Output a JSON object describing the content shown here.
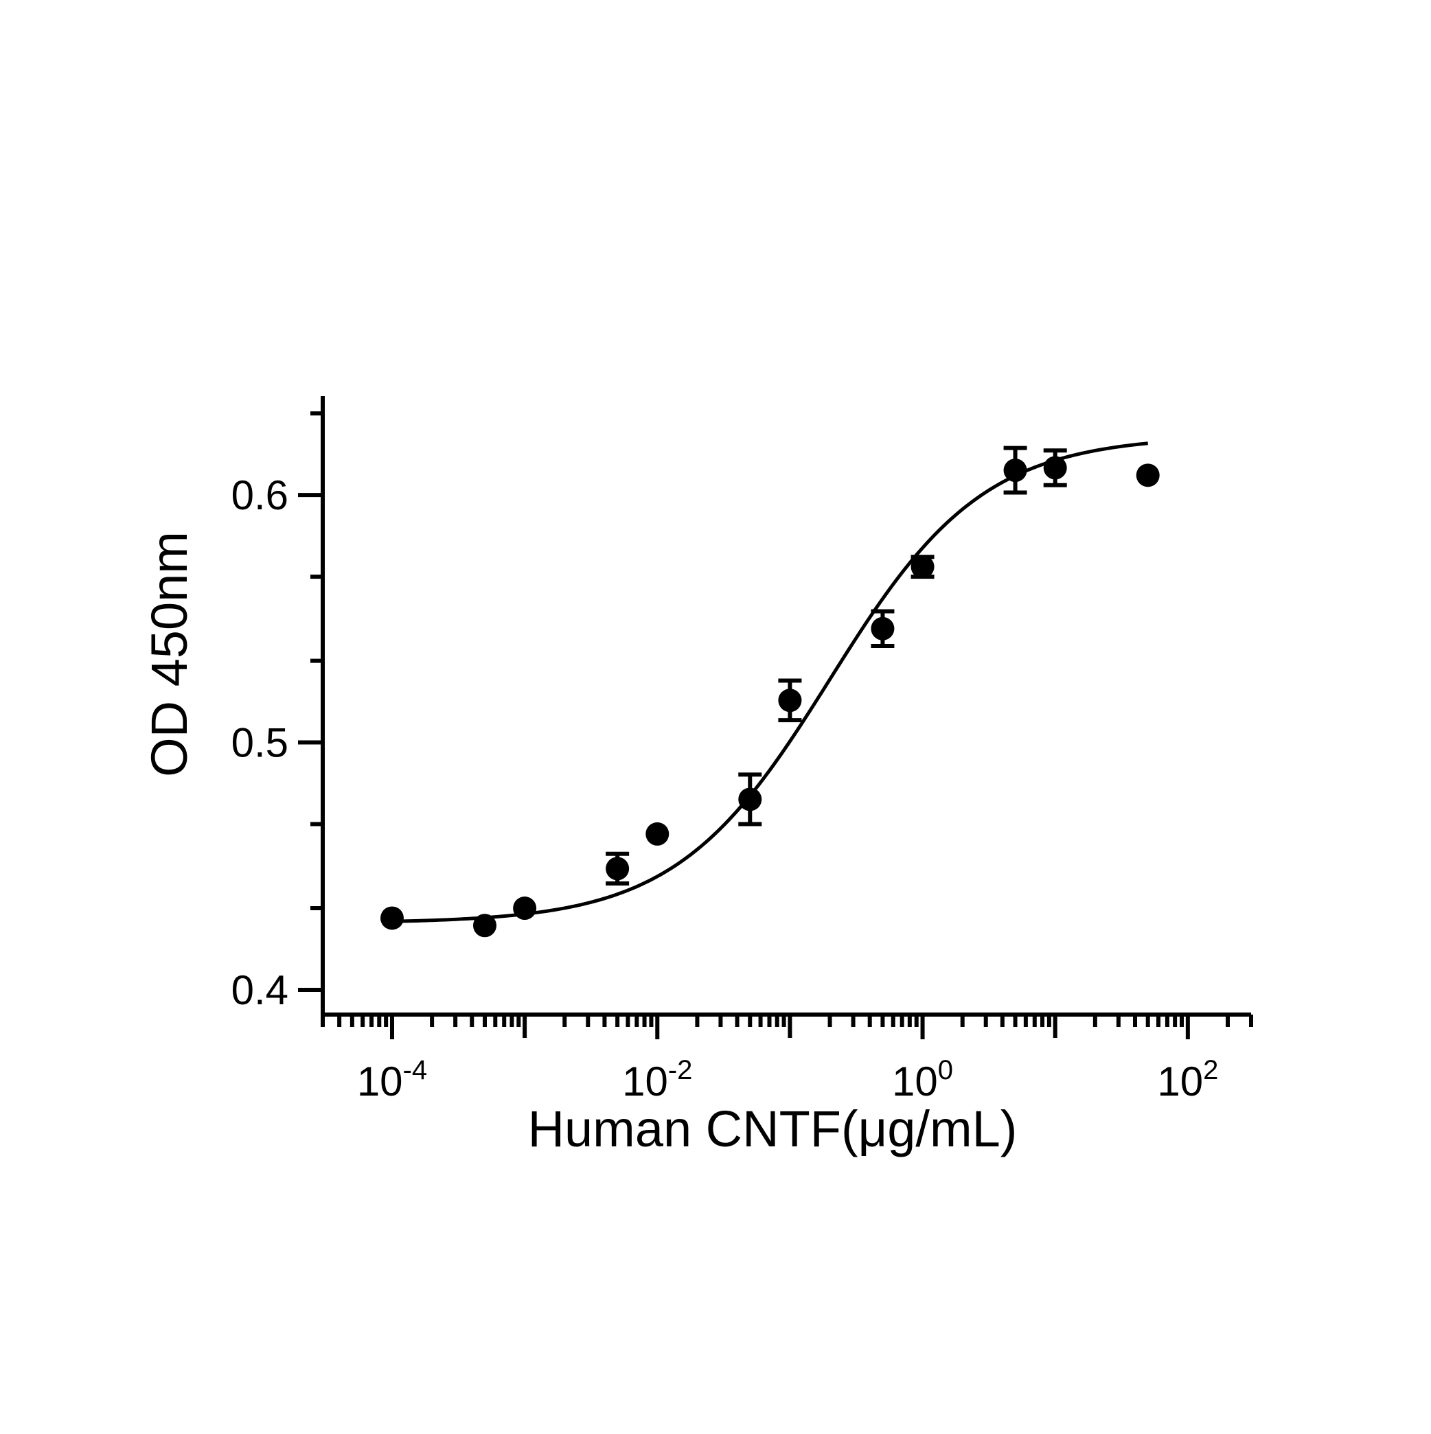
{
  "chart_data": {
    "type": "scatter",
    "title": "",
    "xlabel": "Human CNTF(μg/mL)",
    "ylabel": "OD 450nm",
    "x_scale": "log",
    "xlim": [
      3e-05,
      300
    ],
    "ylim": [
      0.39,
      0.64
    ],
    "x_ticks": [
      {
        "value": 0.0001,
        "base": "10",
        "exp": "-4"
      },
      {
        "value": 0.01,
        "base": "10",
        "exp": "-2"
      },
      {
        "value": 1,
        "base": "10",
        "exp": "0"
      },
      {
        "value": 100,
        "base": "10",
        "exp": "2"
      }
    ],
    "y_ticks": [
      {
        "value": 0.4,
        "label": "0.4"
      },
      {
        "value": 0.5,
        "label": "0.5"
      },
      {
        "value": 0.6,
        "label": "0.6"
      }
    ],
    "y_minor_ticks": [
      0.433,
      0.467,
      0.533,
      0.567,
      0.633
    ],
    "grid": false,
    "legend": "none",
    "colors": {
      "marker": "#000000",
      "curve": "#000000",
      "axis": "#000000"
    },
    "series": [
      {
        "points": [
          {
            "x": 0.0001,
            "y": 0.429,
            "err": 0
          },
          {
            "x": 0.0005,
            "y": 0.426,
            "err": 0
          },
          {
            "x": 0.001,
            "y": 0.433,
            "err": 0
          },
          {
            "x": 0.005,
            "y": 0.449,
            "err": 0.006
          },
          {
            "x": 0.01,
            "y": 0.463,
            "err": 0
          },
          {
            "x": 0.05,
            "y": 0.477,
            "err": 0.01
          },
          {
            "x": 0.1,
            "y": 0.517,
            "err": 0.008
          },
          {
            "x": 0.5,
            "y": 0.546,
            "err": 0.007
          },
          {
            "x": 1.0,
            "y": 0.571,
            "err": 0.004
          },
          {
            "x": 5.0,
            "y": 0.61,
            "err": 0.009
          },
          {
            "x": 10.0,
            "y": 0.611,
            "err": 0.007
          },
          {
            "x": 50.0,
            "y": 0.608,
            "err": 0
          }
        ]
      }
    ],
    "fit_curve": {
      "model": "4PL",
      "bottom": 0.427,
      "top": 0.624,
      "ec50": 0.2,
      "hill": 0.75,
      "x_range": [
        0.0001,
        50
      ]
    }
  }
}
